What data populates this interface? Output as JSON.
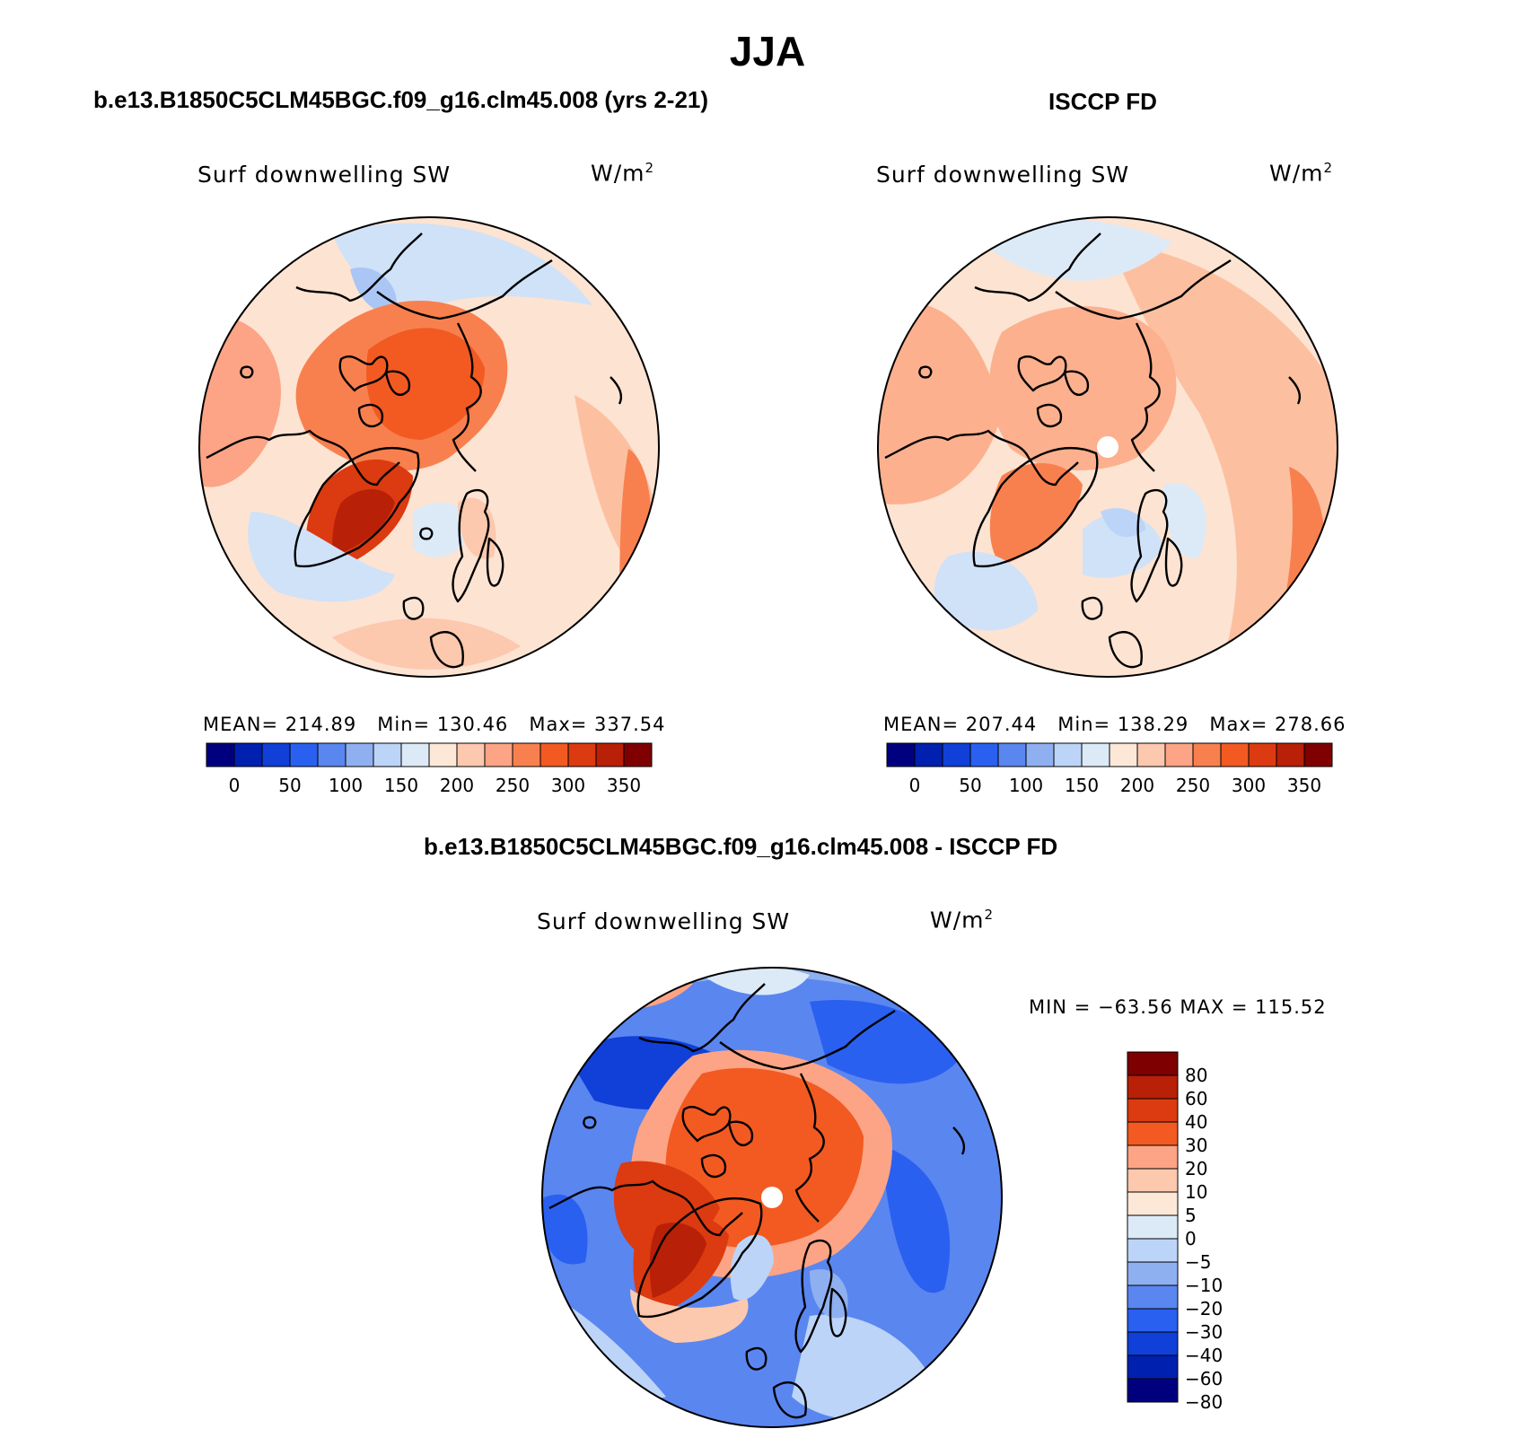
{
  "title": "JJA",
  "panels": [
    {
      "id": "model",
      "heading": "b.e13.B1850C5CLM45BGC.f09_g16.clm45.008 (yrs 2-21)",
      "variable": "Surf downwelling SW",
      "units": "W/m",
      "units_sup": "2",
      "stats": {
        "mean_label": "MEAN=",
        "mean": "214.89",
        "min_label": "Min=",
        "min": "130.46",
        "max_label": "Max=",
        "max": "337.54"
      }
    },
    {
      "id": "obs",
      "heading": "ISCCP FD",
      "variable": "Surf downwelling SW",
      "units": "W/m",
      "units_sup": "2",
      "stats": {
        "mean_label": "MEAN=",
        "mean": "207.44",
        "min_label": "Min=",
        "min": "138.29",
        "max_label": "Max=",
        "max": "278.66"
      }
    },
    {
      "id": "diff",
      "heading": "b.e13.B1850C5CLM45BGC.f09_g16.clm45.008 - ISCCP FD",
      "variable": "Surf downwelling SW",
      "units": "W/m",
      "units_sup": "2",
      "minmax": "MIN = −63.56 MAX = 115.52"
    }
  ],
  "colorbar_abs": {
    "colors": [
      "#00007f",
      "#0020b0",
      "#1040d8",
      "#2a60f0",
      "#5a86f0",
      "#8fb0f0",
      "#bcd4f8",
      "#dceaf8",
      "#fde8d8",
      "#fcc8ae",
      "#fca485",
      "#f8804f",
      "#f25a22",
      "#dc3a10",
      "#b82008",
      "#7f0000"
    ],
    "tick_labels": [
      "0",
      "50",
      "100",
      "150",
      "200",
      "250",
      "300",
      "350"
    ]
  },
  "colorbar_diff": {
    "colors_top_to_bottom": [
      "#7f0000",
      "#b82008",
      "#dc3a10",
      "#f25a22",
      "#fca485",
      "#fcc8ae",
      "#fde8d8",
      "#dceaf8",
      "#bcd4f8",
      "#8fb0f0",
      "#5a86f0",
      "#2a60f0",
      "#1040d8",
      "#0020b0",
      "#00007f"
    ],
    "tick_labels_top_to_bottom": [
      "80",
      "60",
      "40",
      "30",
      "20",
      "10",
      "5",
      "0",
      "−5",
      "−10",
      "−20",
      "−30",
      "−40",
      "−60",
      "−80"
    ]
  }
}
